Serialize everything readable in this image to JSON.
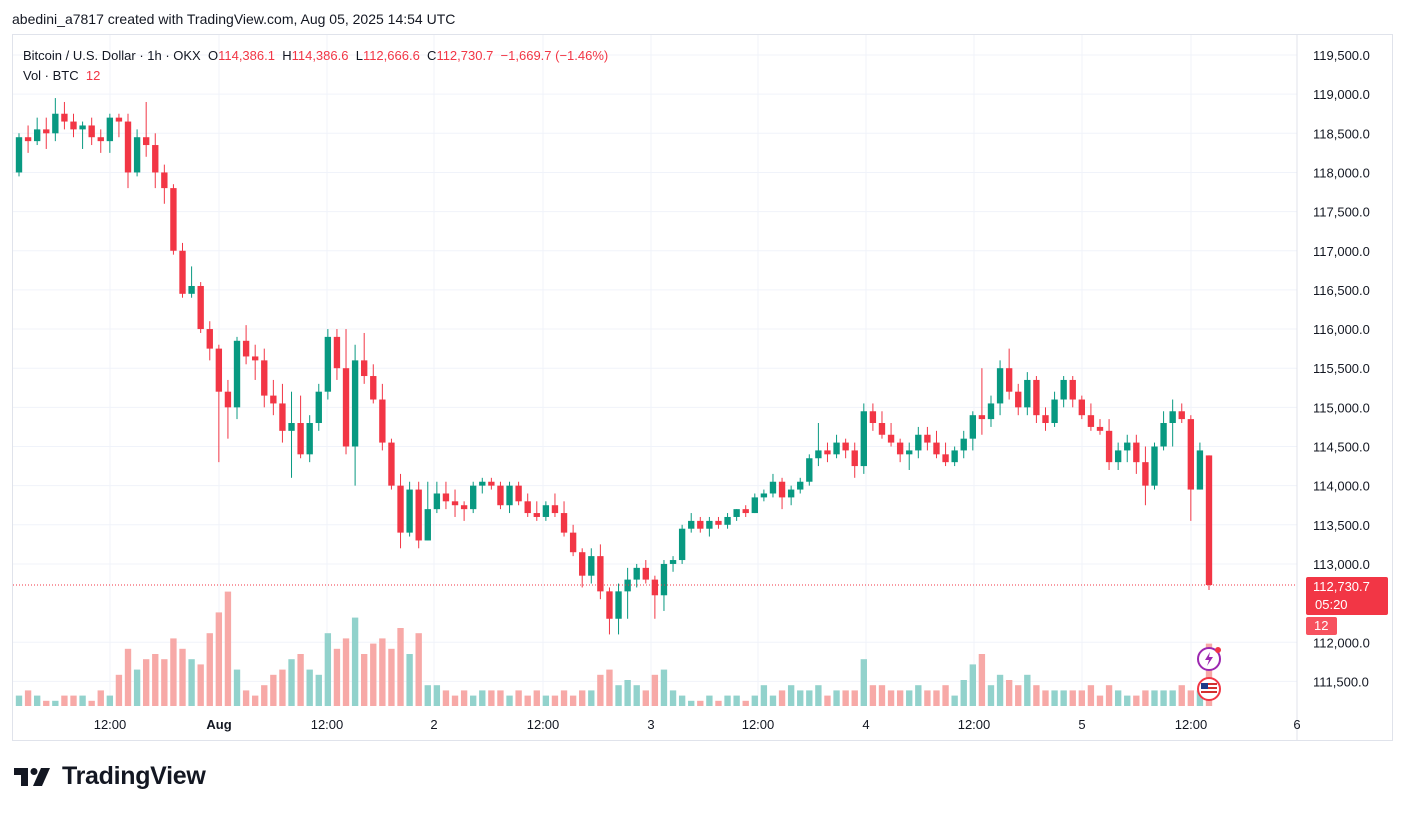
{
  "caption": "abedini_a7817 created with TradingView.com, Aug 05, 2025 14:54 UTC",
  "legend": {
    "symbol": "Bitcoin / U.S. Dollar · 1h · OKX",
    "open_label": "O",
    "open": "114,386.1",
    "high_label": "H",
    "high": "114,386.6",
    "low_label": "L",
    "low": "112,666.6",
    "close_label": "C",
    "close": "112,730.7",
    "change": "−1,669.7 (−1.46%)",
    "volume_label": "Vol · BTC",
    "volume": "12"
  },
  "last_price_label": {
    "price": "112,730.7",
    "countdown": "05:20"
  },
  "last_volume_label": "12",
  "brand": "TradingView",
  "colors": {
    "up": "#089981",
    "down": "#f23645",
    "vol_up": "#92d2cc",
    "vol_down": "#f7a9a7",
    "grid": "#f0f3fa"
  },
  "icons": [
    "lightning-icon",
    "us-flag-icon"
  ],
  "chart_data": {
    "type": "candlestick",
    "title": "Bitcoin / U.S. Dollar · 1h · OKX",
    "timeframe": "1h",
    "y_axis_ticks": [
      "119,500.0",
      "119,000.0",
      "118,500.0",
      "118,000.0",
      "117,500.0",
      "117,000.0",
      "116,500.0",
      "116,000.0",
      "115,500.0",
      "115,000.0",
      "114,500.0",
      "114,000.0",
      "113,500.0",
      "113,000.0",
      "112,000.0",
      "111,500.0"
    ],
    "x_axis_ticks": [
      "12:00",
      "Aug",
      "12:00",
      "2",
      "12:00",
      "3",
      "12:00",
      "4",
      "12:00",
      "5",
      "12:00",
      "6"
    ],
    "ylim": [
      111300,
      119800
    ],
    "candles_ohlcv": [
      [
        118000,
        118500,
        117950,
        118450,
        2
      ],
      [
        118450,
        118600,
        118250,
        118400,
        3
      ],
      [
        118400,
        118700,
        118350,
        118550,
        2
      ],
      [
        118550,
        118700,
        118300,
        118500,
        1
      ],
      [
        118500,
        118950,
        118400,
        118750,
        1
      ],
      [
        118750,
        118900,
        118550,
        118650,
        2
      ],
      [
        118650,
        118750,
        118450,
        118550,
        2
      ],
      [
        118550,
        118650,
        118300,
        118600,
        2
      ],
      [
        118600,
        118700,
        118350,
        118450,
        1
      ],
      [
        118450,
        118550,
        118250,
        118400,
        3
      ],
      [
        118400,
        118750,
        118250,
        118700,
        2
      ],
      [
        118700,
        118750,
        118450,
        118650,
        6
      ],
      [
        118650,
        118750,
        117800,
        118000,
        11
      ],
      [
        118000,
        118550,
        117950,
        118450,
        7
      ],
      [
        118450,
        118900,
        118200,
        118350,
        9
      ],
      [
        118350,
        118500,
        117800,
        118000,
        10
      ],
      [
        118000,
        118100,
        117600,
        117800,
        9
      ],
      [
        117800,
        117850,
        116950,
        117000,
        13
      ],
      [
        117000,
        117100,
        116400,
        116450,
        11
      ],
      [
        116450,
        116800,
        116400,
        116550,
        9
      ],
      [
        116550,
        116600,
        115950,
        116000,
        8
      ],
      [
        116000,
        116100,
        115600,
        115750,
        14
      ],
      [
        115750,
        115800,
        114300,
        115200,
        18
      ],
      [
        115200,
        115350,
        114600,
        115000,
        22
      ],
      [
        115000,
        115900,
        114850,
        115850,
        7
      ],
      [
        115850,
        116050,
        115550,
        115650,
        3
      ],
      [
        115650,
        115800,
        115350,
        115600,
        2
      ],
      [
        115600,
        115750,
        115000,
        115150,
        4
      ],
      [
        115150,
        115350,
        114900,
        115050,
        6
      ],
      [
        115050,
        115300,
        114550,
        114700,
        7
      ],
      [
        114700,
        115200,
        114100,
        114800,
        9
      ],
      [
        114800,
        115150,
        114350,
        114400,
        10
      ],
      [
        114400,
        114900,
        114300,
        114800,
        7
      ],
      [
        114800,
        115300,
        114700,
        115200,
        6
      ],
      [
        115200,
        116000,
        115100,
        115900,
        14
      ],
      [
        115900,
        116000,
        115350,
        115500,
        11
      ],
      [
        115500,
        116000,
        114400,
        114500,
        13
      ],
      [
        114500,
        115800,
        114000,
        115600,
        17
      ],
      [
        115600,
        115950,
        115300,
        115400,
        10
      ],
      [
        115400,
        115550,
        115050,
        115100,
        12
      ],
      [
        115100,
        115300,
        114450,
        114550,
        13
      ],
      [
        114550,
        114600,
        113950,
        114000,
        11
      ],
      [
        114000,
        114150,
        113200,
        113400,
        15
      ],
      [
        113400,
        114050,
        113350,
        113950,
        10
      ],
      [
        113950,
        114050,
        113200,
        113300,
        14
      ],
      [
        113300,
        114050,
        113300,
        113700,
        4
      ],
      [
        113700,
        114050,
        113650,
        113900,
        4
      ],
      [
        113900,
        114050,
        113700,
        113800,
        3
      ],
      [
        113800,
        113950,
        113600,
        113750,
        2
      ],
      [
        113750,
        113800,
        113550,
        113700,
        3
      ],
      [
        113700,
        114050,
        113650,
        114000,
        2
      ],
      [
        114000,
        114100,
        113900,
        114050,
        3
      ],
      [
        114050,
        114100,
        113950,
        114000,
        3
      ],
      [
        114000,
        114050,
        113700,
        113750,
        3
      ],
      [
        113750,
        114050,
        113650,
        114000,
        2
      ],
      [
        114000,
        114050,
        113750,
        113800,
        3
      ],
      [
        113800,
        113900,
        113600,
        113650,
        2
      ],
      [
        113650,
        113800,
        113550,
        113600,
        3
      ],
      [
        113600,
        113800,
        113550,
        113750,
        2
      ],
      [
        113750,
        113900,
        113600,
        113650,
        2
      ],
      [
        113650,
        113800,
        113350,
        113400,
        3
      ],
      [
        113400,
        113500,
        113100,
        113150,
        2
      ],
      [
        113150,
        113200,
        112700,
        112850,
        3
      ],
      [
        112850,
        113200,
        112750,
        113100,
        3
      ],
      [
        113100,
        113250,
        112550,
        112650,
        6
      ],
      [
        112650,
        112700,
        112100,
        112300,
        7
      ],
      [
        112300,
        112750,
        112100,
        112650,
        4
      ],
      [
        112650,
        112950,
        112300,
        112800,
        5
      ],
      [
        112800,
        113000,
        112700,
        112950,
        4
      ],
      [
        112950,
        113050,
        112750,
        112800,
        3
      ],
      [
        112800,
        112850,
        112300,
        112600,
        6
      ],
      [
        112600,
        113050,
        112400,
        113000,
        7
      ],
      [
        113000,
        113100,
        112900,
        113050,
        3
      ],
      [
        113050,
        113500,
        113000,
        113450,
        2
      ],
      [
        113450,
        113650,
        113400,
        113550,
        1
      ],
      [
        113550,
        113600,
        113400,
        113450,
        1
      ],
      [
        113450,
        113600,
        113350,
        113550,
        2
      ],
      [
        113550,
        113600,
        113450,
        113500,
        1
      ],
      [
        113500,
        113650,
        113450,
        113600,
        2
      ],
      [
        113600,
        113700,
        113550,
        113700,
        2
      ],
      [
        113700,
        113750,
        113600,
        113650,
        1
      ],
      [
        113650,
        113900,
        113650,
        113850,
        2
      ],
      [
        113850,
        113950,
        113800,
        113900,
        4
      ],
      [
        113900,
        114150,
        113850,
        114050,
        2
      ],
      [
        114050,
        114100,
        113700,
        113850,
        3
      ],
      [
        113850,
        114000,
        113750,
        113950,
        4
      ],
      [
        113950,
        114100,
        113900,
        114050,
        3
      ],
      [
        114050,
        114400,
        114000,
        114350,
        3
      ],
      [
        114350,
        114800,
        114250,
        114450,
        4
      ],
      [
        114450,
        114550,
        114300,
        114400,
        2
      ],
      [
        114400,
        114650,
        114350,
        114550,
        3
      ],
      [
        114550,
        114600,
        114350,
        114450,
        3
      ],
      [
        114450,
        114550,
        114100,
        114250,
        3
      ],
      [
        114250,
        115050,
        114150,
        114950,
        9
      ],
      [
        114950,
        115050,
        114700,
        114800,
        4
      ],
      [
        114800,
        114950,
        114600,
        114650,
        4
      ],
      [
        114650,
        114800,
        114500,
        114550,
        3
      ],
      [
        114550,
        114600,
        114300,
        114400,
        3
      ],
      [
        114400,
        114550,
        114200,
        114450,
        3
      ],
      [
        114450,
        114750,
        114350,
        114650,
        4
      ],
      [
        114650,
        114750,
        114450,
        114550,
        3
      ],
      [
        114550,
        114700,
        114350,
        114400,
        3
      ],
      [
        114400,
        114550,
        114250,
        114300,
        4
      ],
      [
        114300,
        114500,
        114250,
        114450,
        2
      ],
      [
        114450,
        114700,
        114350,
        114600,
        5
      ],
      [
        114600,
        114950,
        114450,
        114900,
        8
      ],
      [
        114900,
        115500,
        114650,
        114850,
        10
      ],
      [
        114850,
        115150,
        114750,
        115050,
        4
      ],
      [
        115050,
        115600,
        114900,
        115500,
        6
      ],
      [
        115500,
        115750,
        115100,
        115200,
        5
      ],
      [
        115200,
        115300,
        114900,
        115000,
        4
      ],
      [
        115000,
        115450,
        114900,
        115350,
        6
      ],
      [
        115350,
        115400,
        114800,
        114900,
        4
      ],
      [
        114900,
        115000,
        114700,
        114800,
        3
      ],
      [
        114800,
        115200,
        114750,
        115100,
        3
      ],
      [
        115100,
        115400,
        115000,
        115350,
        3
      ],
      [
        115350,
        115400,
        115000,
        115100,
        3
      ],
      [
        115100,
        115150,
        114850,
        114900,
        3
      ],
      [
        114900,
        115050,
        114700,
        114750,
        4
      ],
      [
        114750,
        114850,
        114650,
        114700,
        2
      ],
      [
        114700,
        114850,
        114200,
        114300,
        4
      ],
      [
        114300,
        114550,
        114200,
        114450,
        3
      ],
      [
        114450,
        114650,
        114300,
        114550,
        2
      ],
      [
        114550,
        114650,
        114150,
        114300,
        2
      ],
      [
        114300,
        114500,
        113750,
        114000,
        3
      ],
      [
        114000,
        114550,
        113950,
        114500,
        3
      ],
      [
        114500,
        114950,
        114450,
        114800,
        3
      ],
      [
        114800,
        115100,
        114500,
        114950,
        3
      ],
      [
        114950,
        115050,
        114800,
        114850,
        4
      ],
      [
        114850,
        114900,
        113550,
        113950,
        3
      ],
      [
        113950,
        114550,
        113950,
        114450,
        3
      ],
      [
        114386.1,
        114386.6,
        112666.6,
        112730.7,
        12
      ]
    ]
  }
}
